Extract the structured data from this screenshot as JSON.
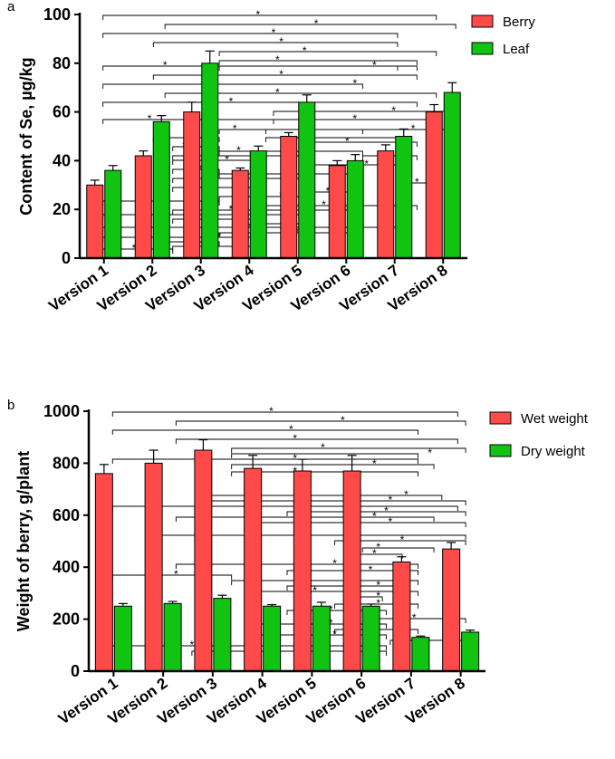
{
  "chart_data": [
    {
      "panel_label": "a",
      "type": "bar",
      "title": "",
      "xlabel": "",
      "ylabel": "Content of Se, µg/kg",
      "ylim": [
        0,
        100
      ],
      "yticks": [
        "0",
        "20",
        "40",
        "60",
        "80",
        "100"
      ],
      "categories": [
        "Version 1",
        "Version 2",
        "Version 3",
        "Version 4",
        "Version 5",
        "Version 6",
        "Version 7",
        "Version 8"
      ],
      "series": [
        {
          "name": "Berry",
          "color": "#ff4a4a",
          "values": [
            30,
            42,
            60,
            36,
            50,
            38,
            44,
            60
          ],
          "errors": [
            2,
            2,
            4,
            1,
            1.5,
            2,
            2.5,
            3
          ]
        },
        {
          "name": "Leaf",
          "color": "#11c411",
          "values": [
            36,
            56,
            80,
            44,
            64,
            40,
            50,
            68
          ],
          "errors": [
            2,
            2.5,
            5,
            2,
            3,
            2.5,
            3,
            4
          ]
        }
      ],
      "significance_marker": "*",
      "legend_position": "top-right",
      "grid": false
    },
    {
      "panel_label": "b",
      "type": "bar",
      "title": "",
      "xlabel": "",
      "ylabel": "Weight of berry, g/plant",
      "ylim": [
        0,
        1000
      ],
      "yticks": [
        "0",
        "200",
        "400",
        "600",
        "800",
        "1000"
      ],
      "categories": [
        "Version 1",
        "Version 2",
        "Version 3",
        "Version 4",
        "Version 5",
        "Version 6",
        "Version 7",
        "Version 8"
      ],
      "series": [
        {
          "name": "Wet weight",
          "color": "#ff4a4a",
          "values": [
            760,
            800,
            850,
            780,
            770,
            770,
            420,
            470
          ],
          "errors": [
            35,
            50,
            40,
            50,
            45,
            60,
            20,
            25
          ]
        },
        {
          "name": "Dry weight",
          "color": "#11c411",
          "values": [
            250,
            260,
            280,
            250,
            250,
            250,
            130,
            150
          ],
          "errors": [
            10,
            8,
            12,
            6,
            15,
            8,
            5,
            8
          ]
        }
      ],
      "significance_marker": "*",
      "legend_position": "top-right",
      "grid": false
    }
  ]
}
